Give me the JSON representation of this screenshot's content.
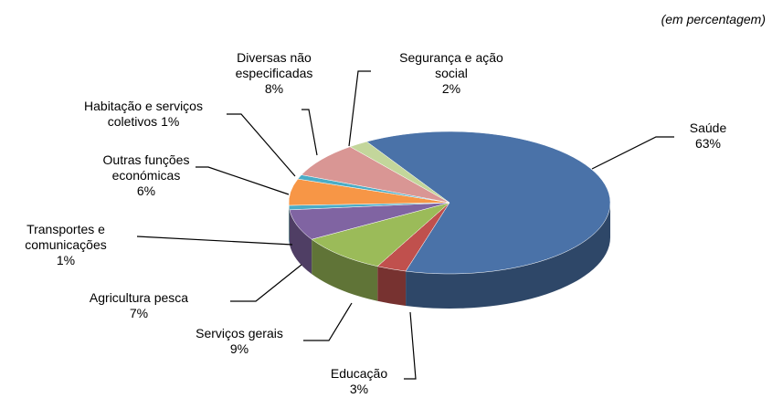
{
  "chart_data": {
    "type": "pie",
    "subtitle": "(em percentagem)",
    "categories": [
      "Saúde",
      "Educação",
      "Serviços gerais",
      "Agricultura pesca",
      "Transportes e comunicações",
      "Outras funções económicas",
      "Habitação e serviços coletivos",
      "Diversas não especificadas",
      "Segurança e ação social"
    ],
    "values": [
      63,
      3,
      9,
      7,
      1,
      6,
      1,
      8,
      2
    ],
    "value_labels": [
      "63%",
      "3%",
      "9%",
      "7%",
      "1%",
      "6%",
      "1%",
      "8%",
      "2%"
    ],
    "colors": [
      "#4a72a8",
      "#c0504d",
      "#9bbb59",
      "#8064a2",
      "#4bacc6",
      "#f79646",
      "#4bacc6",
      "#d99694",
      "#c3d69b"
    ]
  }
}
